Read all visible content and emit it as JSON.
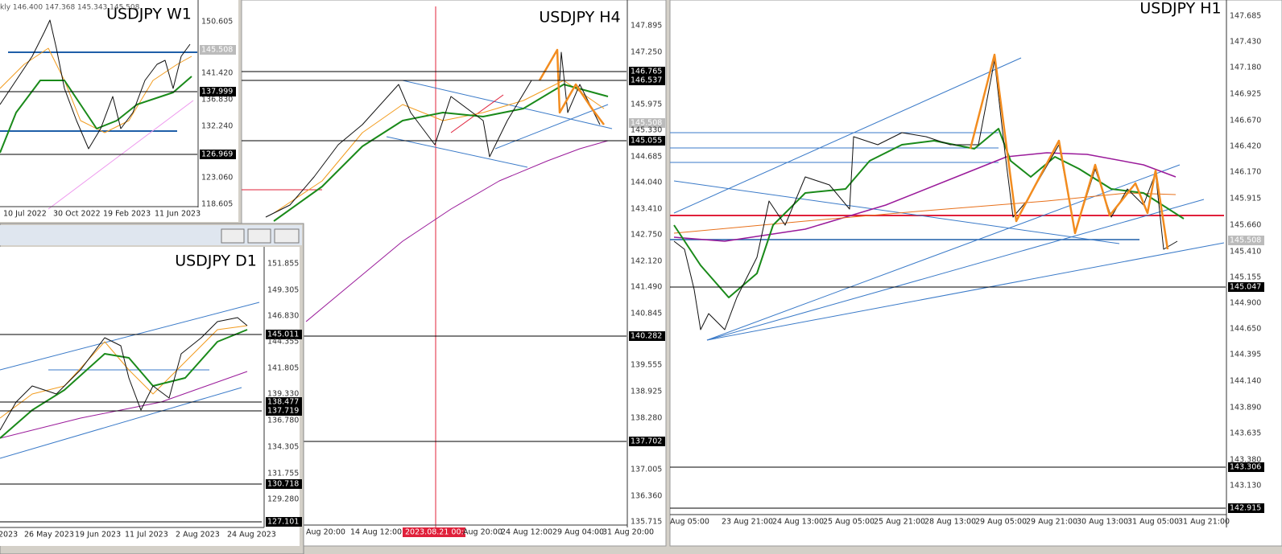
{
  "windows": [
    {
      "title": "USDJPY W1",
      "header": "kly  146.400 147.368 145.343 145.508",
      "price_labels": [
        "150.605",
        "145.508",
        "141.420",
        "137.999",
        "136.830",
        "132.240",
        "126.969",
        "123.060",
        "118.605"
      ],
      "time_labels": [
        "10 Jul 2022",
        "30 Oct 2022",
        "19 Feb 2023",
        "11 Jun 2023"
      ]
    },
    {
      "title": "USDJPY H4",
      "price_labels": [
        "147.895",
        "147.250",
        "146.765",
        "146.537",
        "145.975",
        "145.508",
        "145.330",
        "145.055",
        "144.685",
        "144.040",
        "143.410",
        "142.750",
        "142.120",
        "141.490",
        "140.845",
        "140.282",
        "139.555",
        "138.925",
        "138.280",
        "137.702",
        "137.005",
        "136.360",
        "135.715"
      ],
      "time_labels": [
        "Aug 20:00",
        "14 Aug 12:00",
        "2023.08.21 00:00",
        "Aug 20:00",
        "24 Aug 12:00",
        "29 Aug 04:00",
        "31 Aug 20:00"
      ]
    },
    {
      "title": "USDJPY H1",
      "price_labels": [
        "147.685",
        "147.430",
        "147.180",
        "146.925",
        "146.670",
        "146.420",
        "146.170",
        "145.915",
        "145.660",
        "145.508",
        "145.410",
        "145.155",
        "145.047",
        "144.900",
        "144.650",
        "144.395",
        "144.140",
        "143.890",
        "143.635",
        "143.380",
        "143.306",
        "143.130",
        "142.915"
      ],
      "time_labels": [
        "Aug 05:00",
        "23 Aug 21:00",
        "24 Aug 13:00",
        "25 Aug 05:00",
        "25 Aug 21:00",
        "28 Aug 13:00",
        "29 Aug 05:00",
        "29 Aug 21:00",
        "30 Aug 13:00",
        "31 Aug 05:00",
        "31 Aug 21:00"
      ]
    },
    {
      "title": "USDJPY D1",
      "price_labels": [
        "151.855",
        "149.305",
        "146.830",
        "145.011",
        "144.355",
        "141.805",
        "139.330",
        "138.477",
        "137.719",
        "136.780",
        "134.305",
        "131.755",
        "130.718",
        "129.280",
        "127.101"
      ],
      "time_labels": [
        "2023",
        "26 May 2023",
        "19 Jun 2023",
        "11 Jul 2023",
        "2 Aug 2023",
        "24 Aug 2023"
      ]
    }
  ]
}
